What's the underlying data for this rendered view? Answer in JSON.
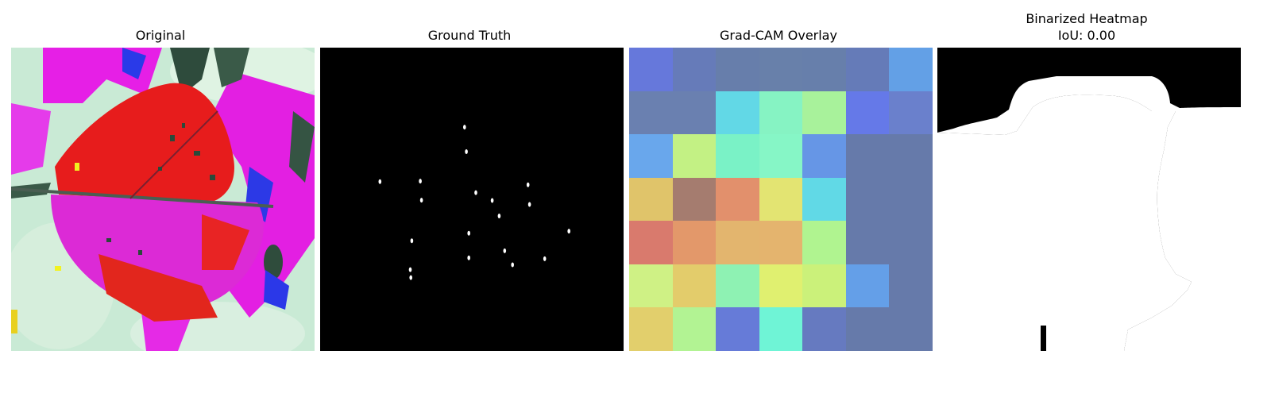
{
  "panels": [
    {
      "title": "Original"
    },
    {
      "title": "Ground Truth"
    },
    {
      "title": "Grad-CAM Overlay"
    },
    {
      "title": "Binarized Heatmap",
      "subtitle": "IoU: 0.00"
    }
  ],
  "gradcam": {
    "grid": [
      [
        "#6678db",
        "#667bb9",
        "#677eab",
        "#6880aa",
        "#677fab",
        "#657bb8",
        "#63a0e6"
      ],
      [
        "#6a80b0",
        "#6a80b0",
        "#62d8e6",
        "#86f3c3",
        "#a8f29b",
        "#6579e8",
        "#6a80cc"
      ],
      [
        "#69a7ec",
        "#c3f184",
        "#7af2c6",
        "#86f6c6",
        "#6696e6",
        "#667aaa",
        "#667aaa"
      ],
      [
        "#e0c46a",
        "#a57c6f",
        "#e2906c",
        "#e3e472",
        "#61d9e6",
        "#667aaa",
        "#667aaa"
      ],
      [
        "#d97a6d",
        "#e3986a",
        "#e3b56e",
        "#e4b46e",
        "#b0f490",
        "#667aaa",
        "#667aaa"
      ],
      [
        "#cff185",
        "#e3cc6b",
        "#8ef2b3",
        "#e0f070",
        "#cbf17a",
        "#649fe8",
        "#667aaa"
      ],
      [
        "#e2cf6c",
        "#b2f393",
        "#667bd8",
        "#6ff4d6",
        "#667ac0",
        "#667aaa",
        "#667aaa"
      ]
    ]
  },
  "ground_truth": {
    "spots": [
      [
        0.476,
        0.262
      ],
      [
        0.482,
        0.343
      ],
      [
        0.33,
        0.44
      ],
      [
        0.197,
        0.442
      ],
      [
        0.334,
        0.503
      ],
      [
        0.513,
        0.478
      ],
      [
        0.567,
        0.504
      ],
      [
        0.685,
        0.452
      ],
      [
        0.69,
        0.517
      ],
      [
        0.59,
        0.555
      ],
      [
        0.302,
        0.637
      ],
      [
        0.49,
        0.612
      ],
      [
        0.82,
        0.605
      ],
      [
        0.608,
        0.67
      ],
      [
        0.49,
        0.693
      ],
      [
        0.74,
        0.696
      ],
      [
        0.634,
        0.716
      ],
      [
        0.297,
        0.732
      ],
      [
        0.299,
        0.758
      ]
    ]
  }
}
